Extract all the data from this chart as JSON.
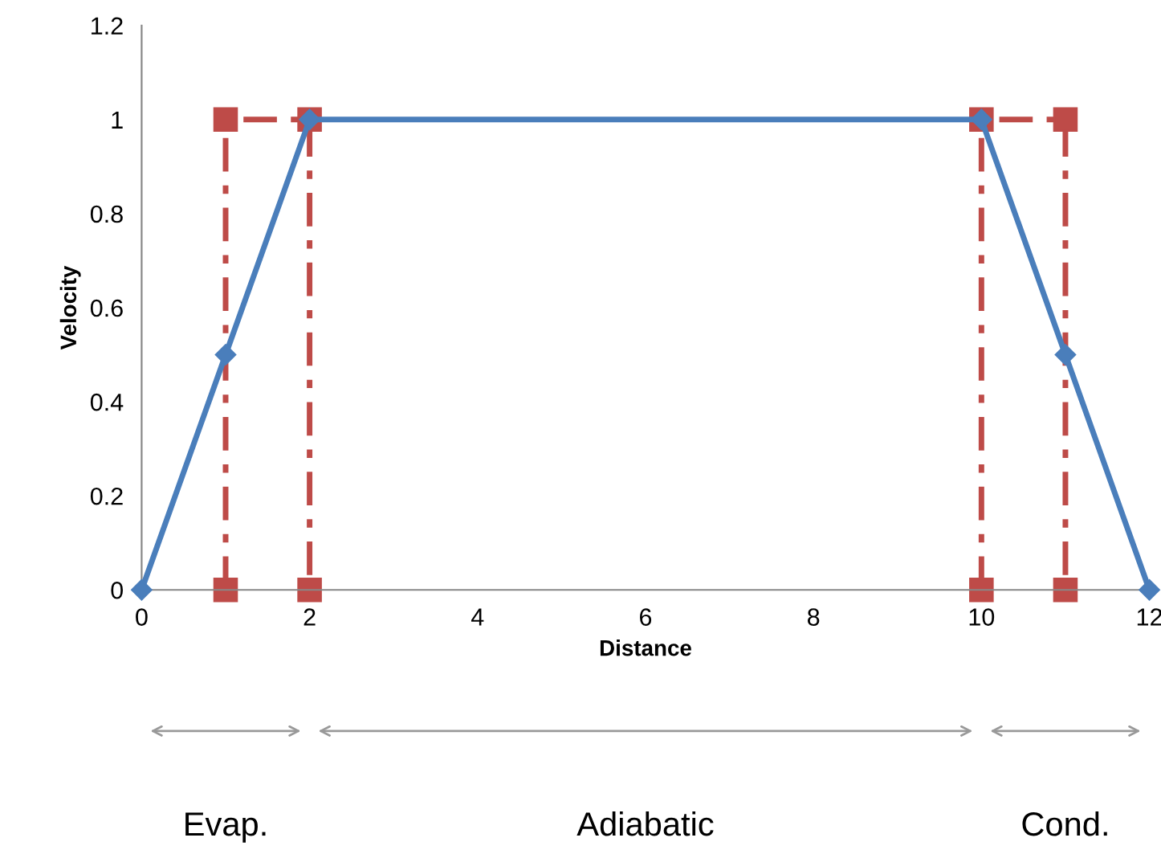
{
  "chart_data": {
    "type": "line",
    "xlabel": "Distance",
    "ylabel": "Velocity",
    "xlim": [
      0,
      12
    ],
    "ylim": [
      0,
      1.2
    ],
    "xticks": [
      0,
      2,
      4,
      6,
      8,
      10,
      12
    ],
    "yticks": [
      0,
      0.2,
      0.4,
      0.6,
      0.8,
      1,
      1.2
    ],
    "grid": false,
    "legend": false,
    "series": [
      {
        "color": "#4a7ebb",
        "marker": "diamond",
        "line_style": "solid",
        "x": [
          0,
          1,
          2,
          10,
          11,
          12
        ],
        "values": [
          0,
          0.5,
          1,
          1,
          0.5,
          0
        ]
      },
      {
        "color": "#be4b48",
        "marker": "square",
        "line_style": "dashed",
        "x": [
          1,
          1,
          2,
          2
        ],
        "values": [
          0,
          1,
          1,
          0
        ]
      },
      {
        "color": "#be4b48",
        "marker": "square",
        "line_style": "dashed",
        "x": [
          10,
          10,
          11,
          11
        ],
        "values": [
          0,
          1,
          1,
          0
        ]
      }
    ],
    "annotations": [
      "Evap.",
      "Adiabatic",
      "Cond."
    ]
  }
}
